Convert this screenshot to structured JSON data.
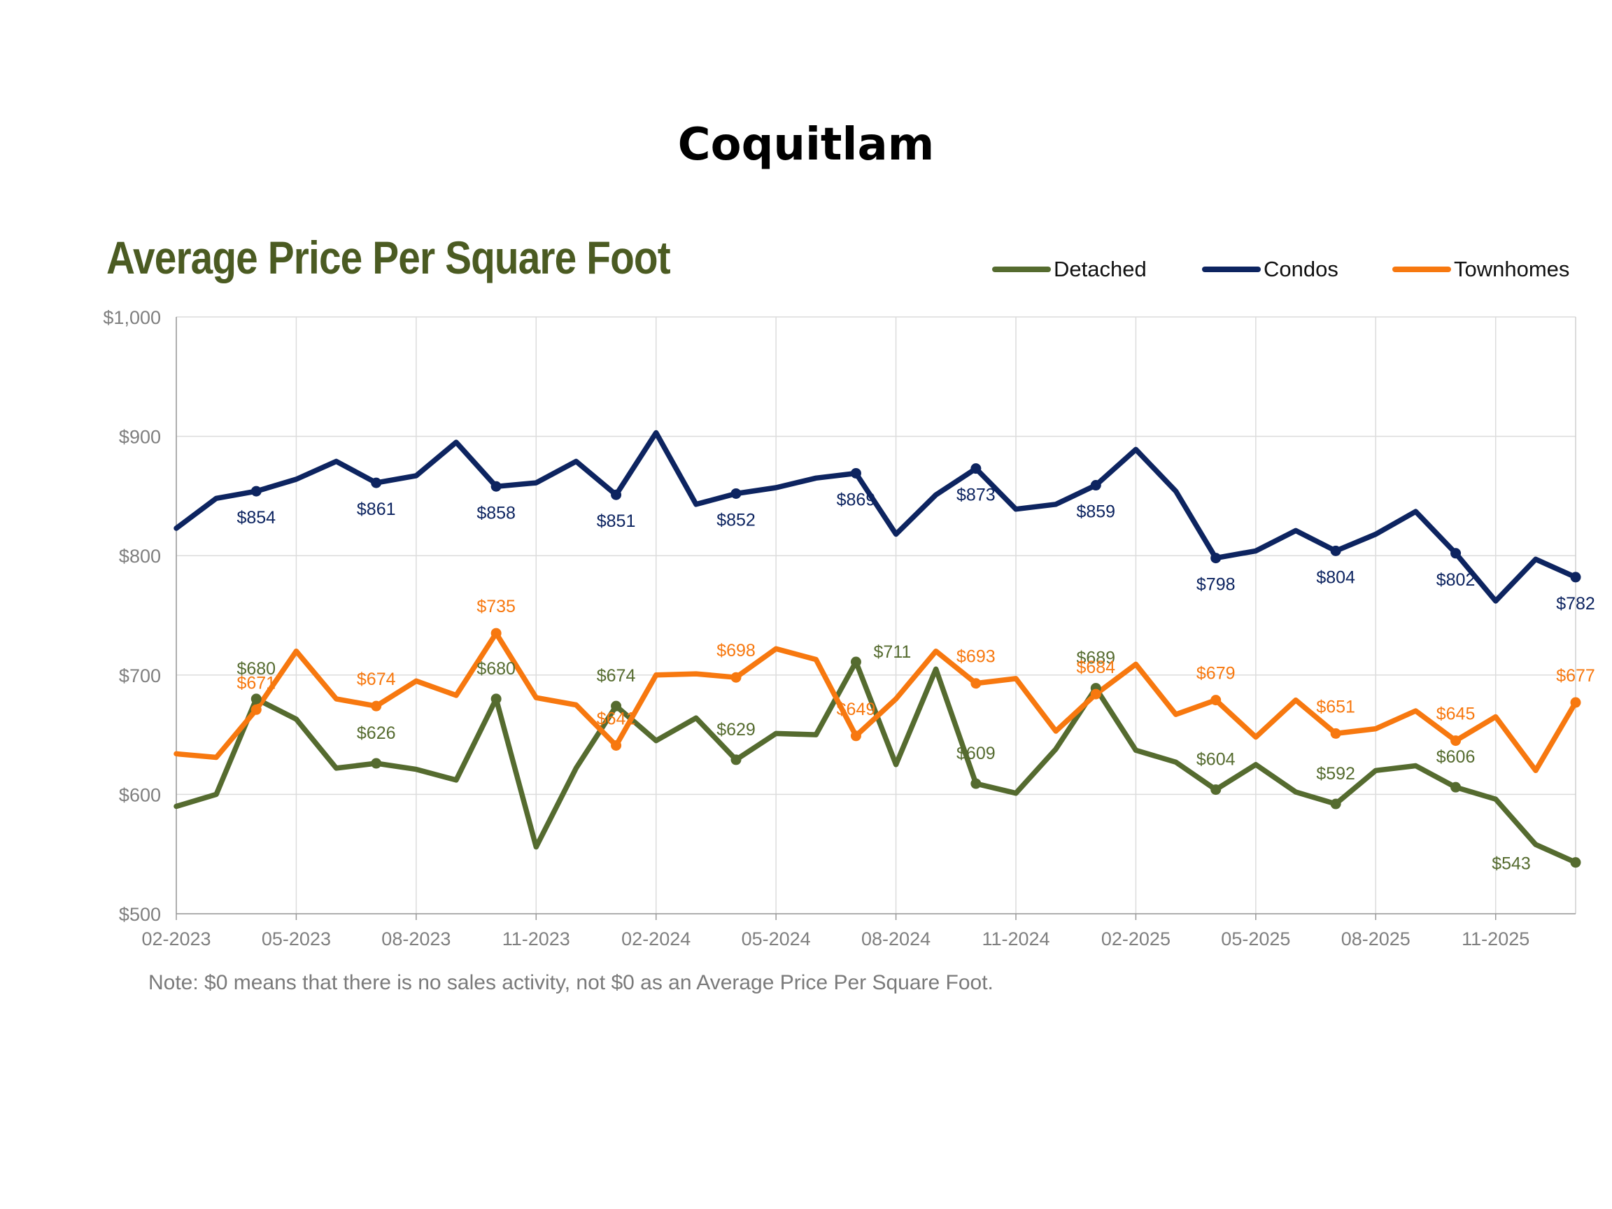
{
  "page": {
    "title": "Coquitlam",
    "note": "Note: $0 means that there is no sales activity, not $0 as an Average Price Per Square Foot."
  },
  "legend": [
    {
      "label": "Detached",
      "color": "#556b2f"
    },
    {
      "label": "Condos",
      "color": "#0d2460"
    },
    {
      "label": "Townhomes",
      "color": "#f7780f"
    }
  ],
  "chart_data": {
    "type": "line",
    "title": "Average Price Per Square Foot",
    "xlabel": "",
    "ylabel": "",
    "ylim": [
      500,
      1000
    ],
    "yticks": [
      500,
      600,
      700,
      800,
      900,
      1000
    ],
    "ytick_labels": [
      "$500",
      "$600",
      "$700",
      "$800",
      "$900",
      "$1,000"
    ],
    "x": [
      "02-2023",
      "03-2023",
      "04-2023",
      "05-2023",
      "06-2023",
      "07-2023",
      "08-2023",
      "09-2023",
      "10-2023",
      "11-2023",
      "12-2023",
      "01-2024",
      "02-2024",
      "03-2024",
      "04-2024",
      "05-2024",
      "06-2024",
      "07-2024",
      "08-2024",
      "09-2024",
      "10-2024",
      "11-2024",
      "12-2024",
      "01-2025",
      "02-2025",
      "03-2025",
      "04-2025",
      "05-2025",
      "06-2025",
      "07-2025",
      "08-2025",
      "09-2025",
      "10-2025",
      "11-2025",
      "12-2025",
      "01-2026"
    ],
    "xtick_labels": [
      "02-2023",
      "05-2023",
      "08-2023",
      "11-2023",
      "02-2024",
      "05-2024",
      "08-2024",
      "11-2024",
      "02-2025",
      "05-2025",
      "08-2025",
      "11-2025"
    ],
    "xtick_every": 3,
    "legend_position": "top-right",
    "grid": true,
    "series": [
      {
        "name": "Detached",
        "color": "#556b2f",
        "values": [
          590,
          600,
          680,
          663,
          622,
          626,
          621,
          612,
          680,
          556,
          622,
          674,
          645,
          664,
          629,
          651,
          650,
          711,
          625,
          705,
          609,
          601,
          638,
          689,
          637,
          627,
          604,
          625,
          602,
          592,
          620,
          624,
          606,
          596,
          558,
          543
        ],
        "labeled_indices": [
          2,
          5,
          8,
          11,
          14,
          17,
          20,
          23,
          26,
          29,
          32,
          35
        ],
        "labels": [
          "$680",
          "$626",
          "$680",
          "$674",
          "$629",
          "$711",
          "$609",
          "$689",
          "$604",
          "$592",
          "$606",
          "$543"
        ]
      },
      {
        "name": "Condos",
        "color": "#0d2460",
        "values": [
          823,
          848,
          854,
          864,
          879,
          861,
          867,
          895,
          858,
          861,
          879,
          851,
          903,
          843,
          852,
          857,
          865,
          869,
          818,
          851,
          873,
          839,
          843,
          859,
          889,
          854,
          798,
          804,
          821,
          804,
          818,
          837,
          802,
          762,
          797,
          782
        ],
        "labeled_indices": [
          2,
          5,
          8,
          11,
          14,
          17,
          20,
          23,
          26,
          29,
          32,
          35
        ],
        "labels": [
          "$854",
          "$861",
          "$858",
          "$851",
          "$852",
          "$869",
          "$873",
          "$859",
          "$798",
          "$804",
          "$802",
          "$782"
        ]
      },
      {
        "name": "Townhomes",
        "color": "#f7780f",
        "values": [
          634,
          631,
          671,
          720,
          680,
          674,
          695,
          683,
          735,
          681,
          675,
          641,
          700,
          701,
          698,
          722,
          713,
          649,
          680,
          720,
          693,
          697,
          653,
          684,
          709,
          667,
          679,
          648,
          679,
          651,
          655,
          670,
          645,
          665,
          620,
          677
        ],
        "labeled_indices": [
          2,
          5,
          8,
          11,
          14,
          17,
          20,
          23,
          26,
          29,
          32,
          35
        ],
        "labels": [
          "$671",
          "$674",
          "$735",
          "$641",
          "$698",
          "$649",
          "$693",
          "$684",
          "$679",
          "$651",
          "$645",
          "$677"
        ]
      }
    ]
  }
}
